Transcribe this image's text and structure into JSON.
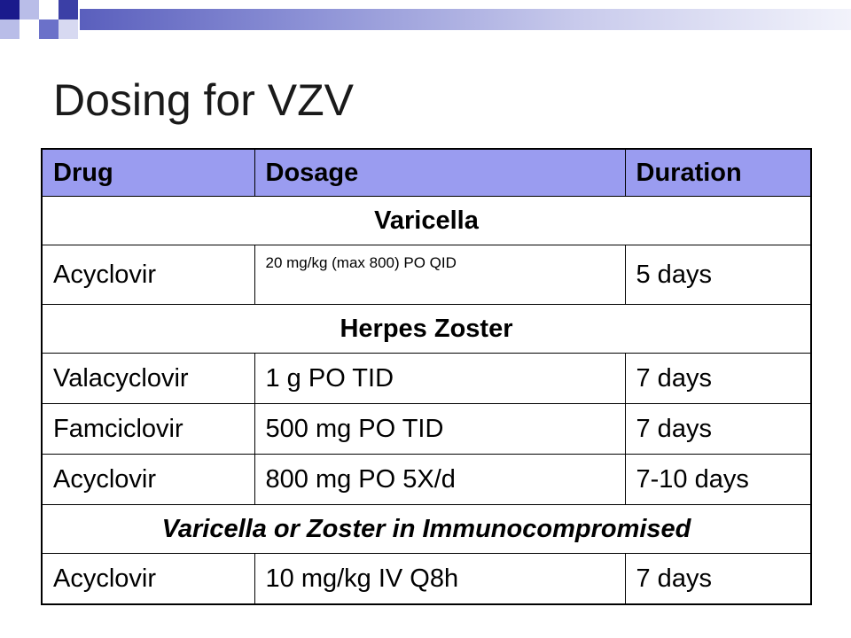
{
  "slide": {
    "title": "Dosing for VZV",
    "accent_color": "#9a9cf0"
  },
  "table": {
    "headers": [
      "Drug",
      "Dosage",
      "Duration"
    ],
    "sections": [
      {
        "label": "Varicella",
        "rows": [
          [
            "Acyclovir",
            "20 mg/kg (max 800) PO QID",
            "5 days"
          ]
        ]
      },
      {
        "label": "Herpes Zoster",
        "rows": [
          [
            "Valacyclovir",
            "1 g PO TID",
            "7 days"
          ],
          [
            "Famciclovir",
            "500 mg PO TID",
            "7 days"
          ],
          [
            "Acyclovir",
            "800 mg PO 5X/d",
            "7-10 days"
          ]
        ]
      },
      {
        "label": "Varicella or Zoster in Immunocompromised",
        "rows": [
          [
            "Acyclovir",
            "10 mg/kg IV Q8h",
            "7 days"
          ]
        ]
      }
    ]
  }
}
